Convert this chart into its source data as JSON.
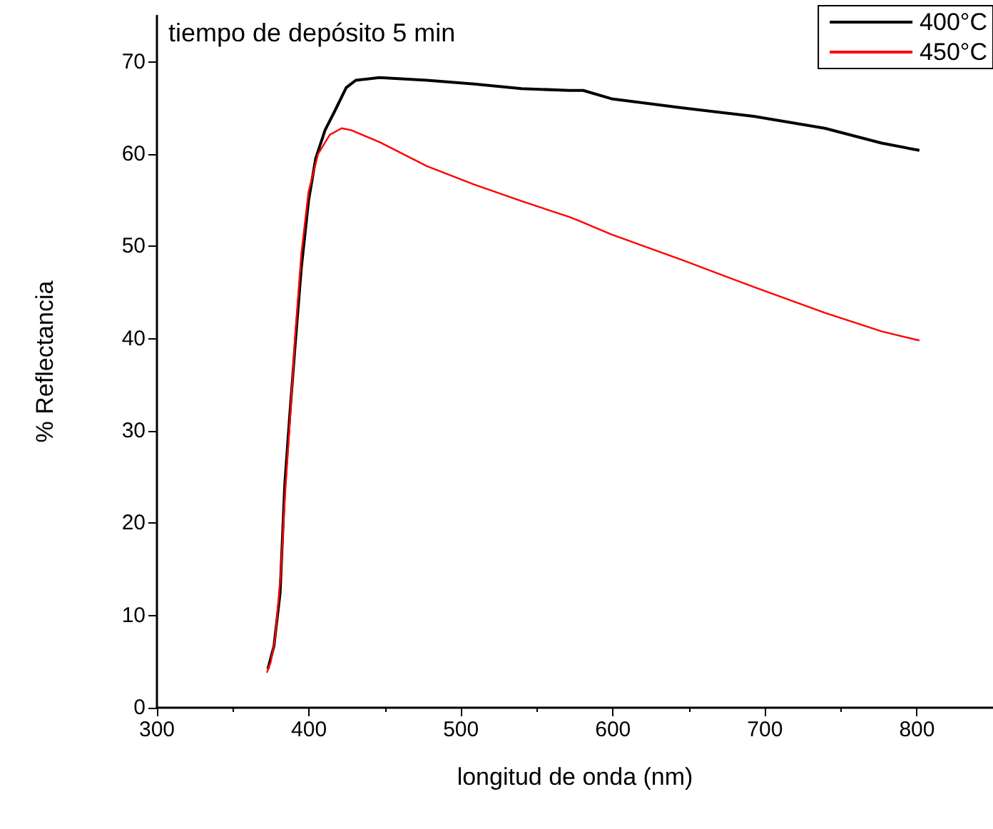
{
  "chart_data": {
    "type": "line",
    "xlabel": "longitud de onda (nm)",
    "ylabel": "% Reflectancia",
    "annotations": [
      "tiempo de depósito 5 min"
    ],
    "xlim": [
      300,
      850
    ],
    "xticks": [
      300,
      400,
      500,
      600,
      700,
      800
    ],
    "ylim": [
      0,
      75
    ],
    "yticks": [
      0,
      10,
      20,
      30,
      40,
      50,
      60,
      70
    ],
    "grid": false,
    "legend": "top right",
    "marker": "none",
    "line_style": "solid",
    "series": [
      {
        "name": "400°C",
        "color": "#000000",
        "x": [
          373,
          377,
          381,
          384.1,
          387.2,
          391,
          395,
          399.7,
          404.4,
          410.6,
          416.8,
          424.5,
          430.8,
          446.4,
          477.6,
          508.7,
          539.9,
          571,
          580.4,
          599,
          645.8,
          692.5,
          739.3,
          776.6,
          801.6
        ],
        "values": [
          4.2,
          6.7,
          12.4,
          24.2,
          31.3,
          39.5,
          47.7,
          54.9,
          59.5,
          62.6,
          64.6,
          67.2,
          68,
          68.3,
          68,
          67.6,
          67.1,
          66.9,
          66.9,
          66,
          65,
          64.1,
          62.8,
          61.2,
          60.4
        ]
      },
      {
        "name": "450°C",
        "color": "#ff0000",
        "x": [
          372.3,
          374.8,
          377.9,
          381.6,
          384.1,
          387.2,
          391,
          395,
          399.7,
          406,
          413.7,
          421.5,
          427.7,
          446.4,
          477.6,
          508.7,
          539.9,
          571,
          577.3,
          599,
          645.8,
          692.5,
          739.3,
          776.6,
          801.6
        ],
        "values": [
          3.8,
          4.9,
          7.7,
          14.9,
          22.6,
          30.3,
          40.5,
          49.2,
          55.9,
          60,
          62.1,
          62.8,
          62.6,
          61.3,
          58.7,
          56.7,
          54.9,
          53.2,
          52.8,
          51.3,
          48.5,
          45.6,
          42.8,
          40.8,
          39.8
        ]
      }
    ]
  }
}
